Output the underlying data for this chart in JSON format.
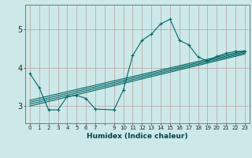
{
  "xlabel": "Humidex (Indice chaleur)",
  "bg_color": "#cce8e8",
  "grid_color": "#b8a0a0",
  "line_color": "#006868",
  "xlim": [
    -0.5,
    23.5
  ],
  "ylim": [
    2.55,
    5.65
  ],
  "yticks": [
    3,
    4,
    5
  ],
  "xtick_labels": [
    "0",
    "1",
    "2",
    "3",
    "4",
    "5",
    "6",
    "7",
    "",
    "9",
    "10",
    "11",
    "12",
    "13",
    "14",
    "15",
    "16",
    "17",
    "18",
    "19",
    "20",
    "21",
    "22",
    "23"
  ],
  "line_main": {
    "x": [
      0,
      1,
      2,
      3,
      4,
      5,
      6,
      7,
      9,
      10,
      11,
      12,
      13,
      14,
      15,
      16,
      17,
      18,
      19,
      20,
      21,
      22,
      23
    ],
    "y": [
      3.85,
      3.48,
      2.9,
      2.9,
      3.25,
      3.28,
      3.2,
      2.92,
      2.9,
      3.42,
      4.32,
      4.72,
      4.88,
      5.15,
      5.27,
      4.72,
      4.6,
      4.28,
      4.18,
      4.3,
      4.38,
      4.43,
      4.43
    ]
  },
  "linear_lines": [
    {
      "x": [
        0,
        23
      ],
      "y": [
        3.15,
        4.45
      ]
    },
    {
      "x": [
        0,
        23
      ],
      "y": [
        3.1,
        4.42
      ]
    },
    {
      "x": [
        0,
        23
      ],
      "y": [
        3.05,
        4.39
      ]
    },
    {
      "x": [
        0,
        23
      ],
      "y": [
        3.0,
        4.36
      ]
    }
  ]
}
